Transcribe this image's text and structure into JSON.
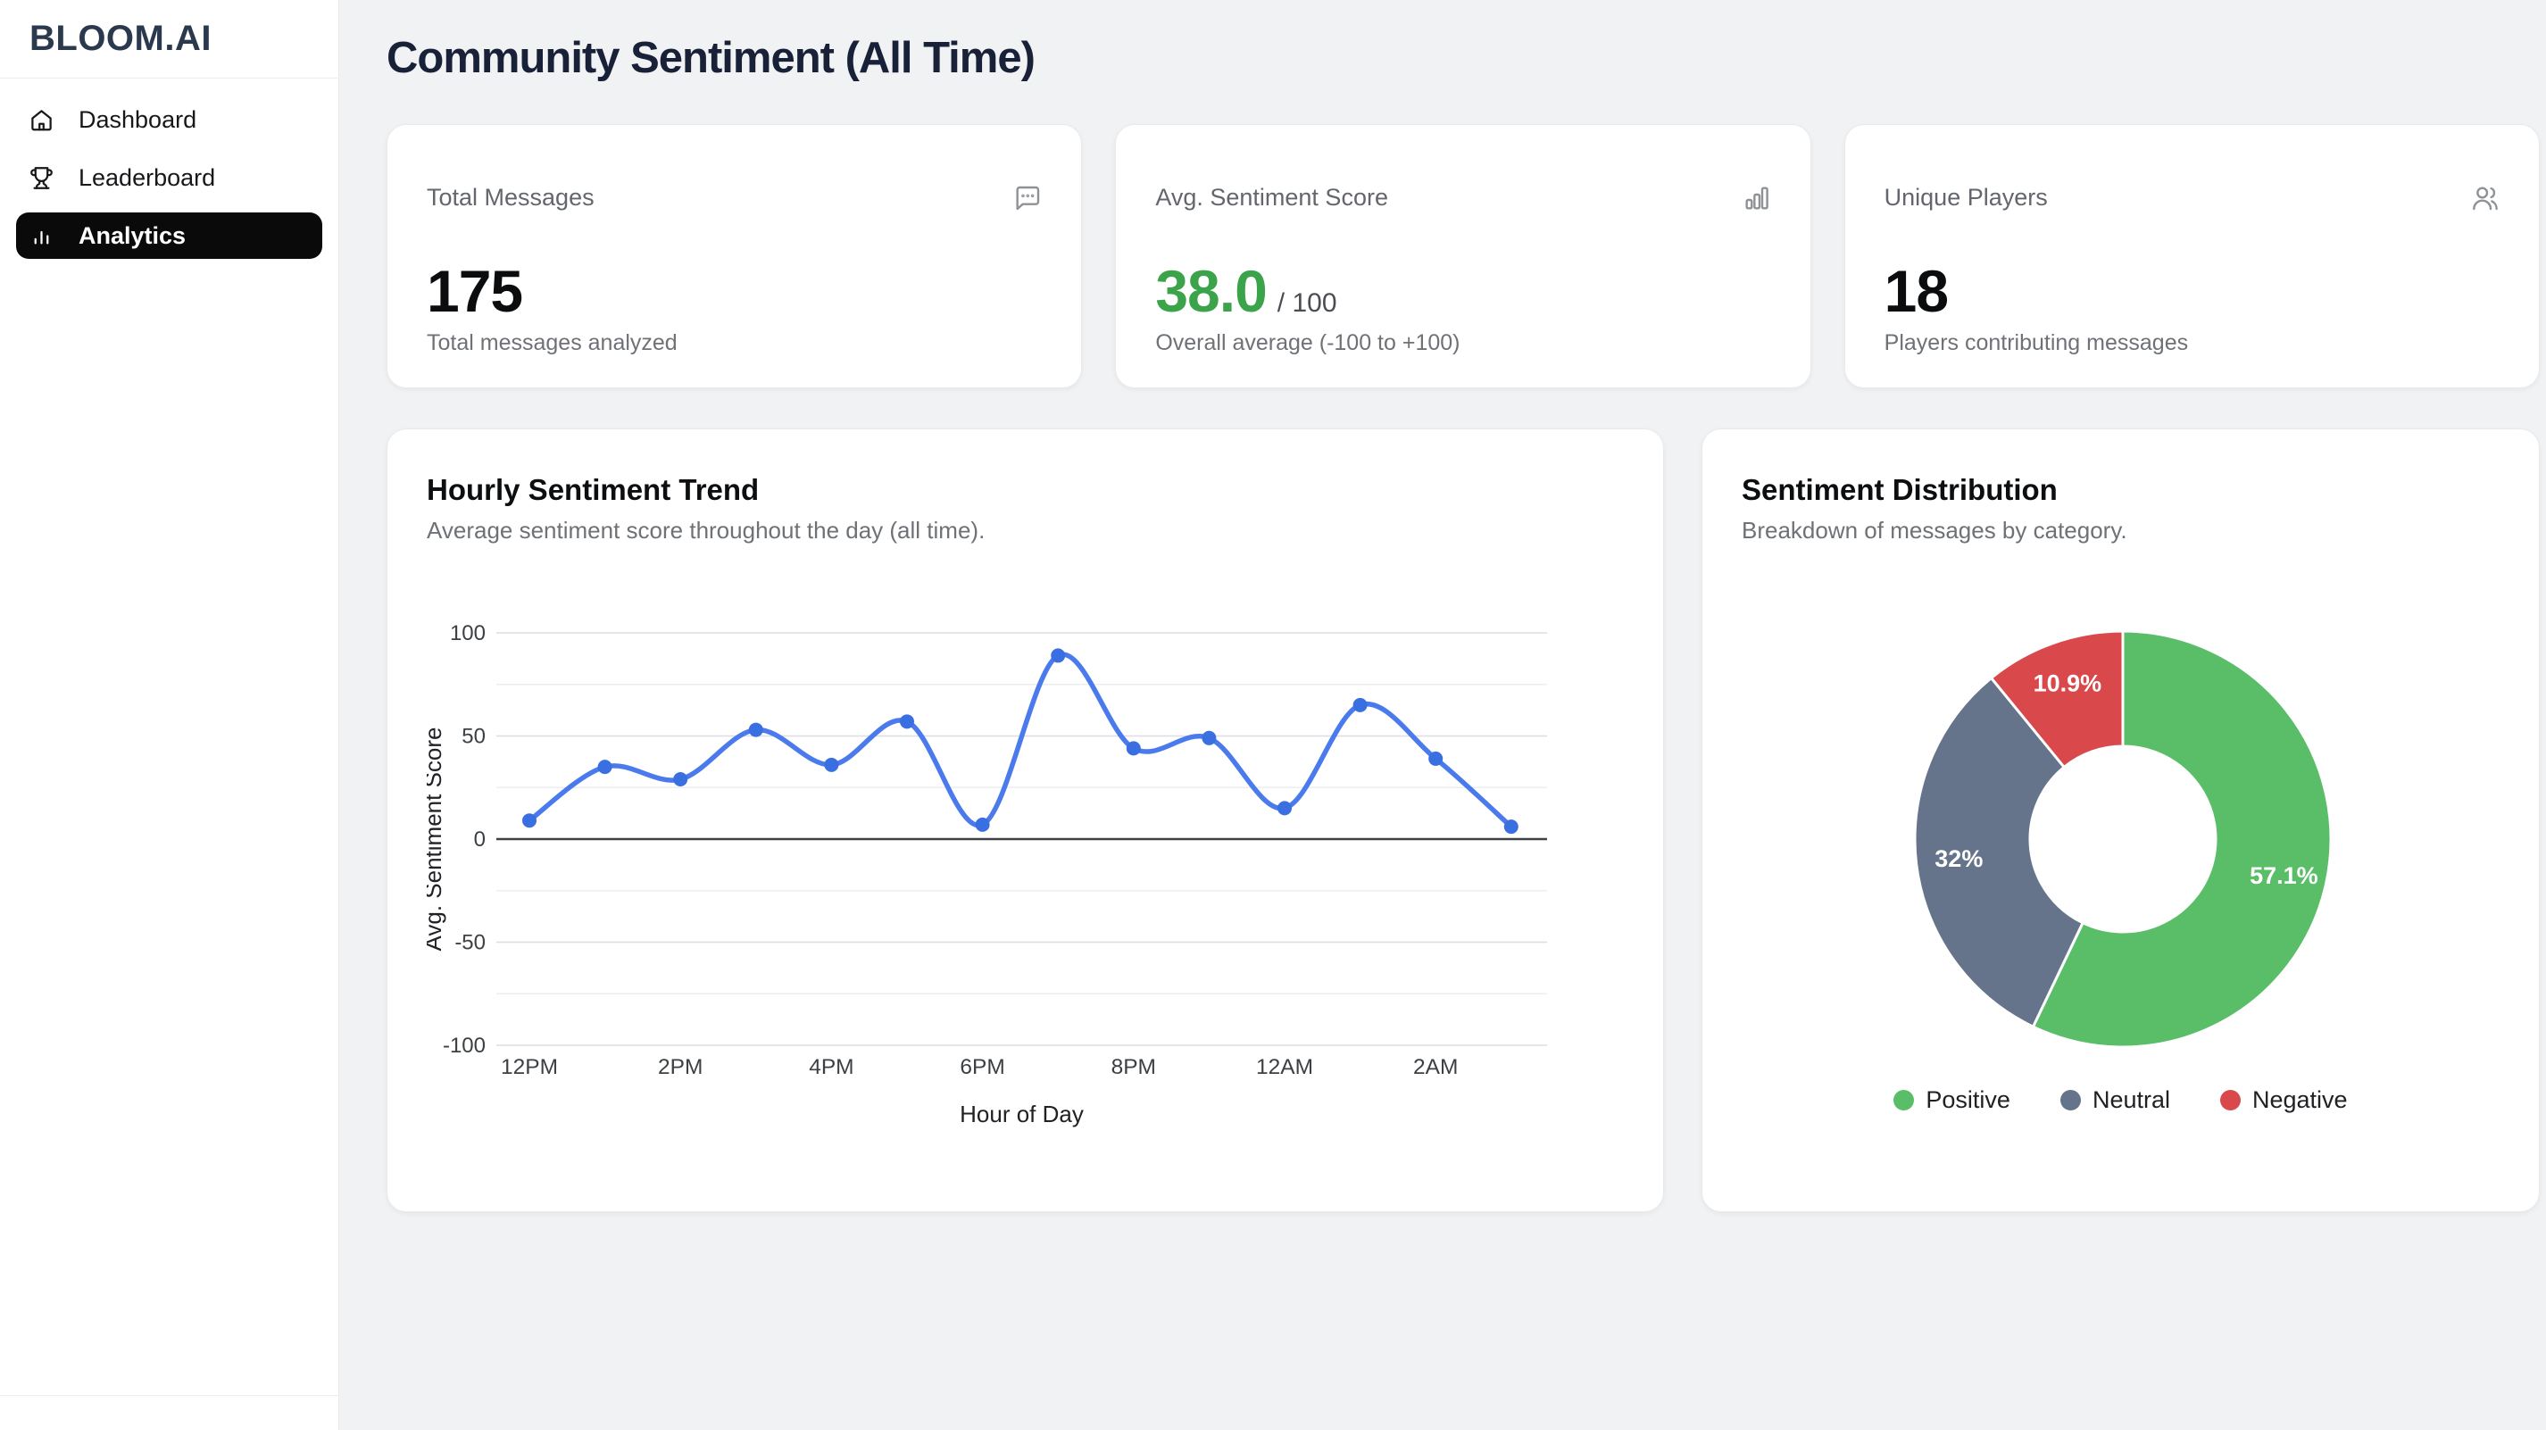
{
  "sidebar": {
    "logo": "BLOOM.AI",
    "items": [
      {
        "label": "Dashboard",
        "active": false
      },
      {
        "label": "Leaderboard",
        "active": false
      },
      {
        "label": "Analytics",
        "active": true
      }
    ]
  },
  "header": {
    "title": "Community Sentiment (All Time)"
  },
  "stats": [
    {
      "label": "Total Messages",
      "value": "175",
      "suffix": "",
      "description": "Total messages analyzed"
    },
    {
      "label": "Avg. Sentiment Score",
      "value": "38.0",
      "suffix": "/ 100",
      "description": "Overall average (-100 to +100)",
      "value_color": "#3BA349"
    },
    {
      "label": "Unique Players",
      "value": "18",
      "suffix": "",
      "description": "Players contributing messages"
    }
  ],
  "trend_card": {
    "title": "Hourly Sentiment Trend",
    "subtitle": "Average sentiment score throughout the day (all time)."
  },
  "distribution_card": {
    "title": "Sentiment Distribution",
    "subtitle": "Breakdown of messages by category."
  },
  "chart_data": [
    {
      "type": "line",
      "title": "Hourly Sentiment Trend",
      "x": [
        "12PM",
        "1PM",
        "2PM",
        "3PM",
        "4PM",
        "5PM",
        "6PM",
        "7PM",
        "8PM",
        "9PM",
        "12AM",
        "1AM",
        "2AM",
        "3AM"
      ],
      "values": [
        9,
        35,
        29,
        53,
        36,
        57,
        7,
        89,
        44,
        49,
        15,
        65,
        39,
        6
      ],
      "x_ticks_shown": [
        "12PM",
        "2PM",
        "4PM",
        "6PM",
        "8PM",
        "12AM",
        "2AM"
      ],
      "xlabel": "Hour of Day",
      "ylabel": "Avg. Sentiment Score",
      "ylim": [
        -100,
        100
      ],
      "yticks": [
        100,
        50,
        0,
        -50,
        -100
      ],
      "minor_grid_step": 25,
      "grid": true,
      "smooth": true,
      "line_color": "#4A7AEC",
      "point_color": "#3A6FE2"
    },
    {
      "type": "pie",
      "title": "Sentiment Distribution",
      "donut": true,
      "categories": [
        "Positive",
        "Neutral",
        "Negative"
      ],
      "values": [
        57.1,
        32,
        10.9
      ],
      "display_labels": [
        "57.1%",
        "32%",
        "10.9%"
      ],
      "colors": [
        "#59BE67",
        "#65748B",
        "#D9494C"
      ],
      "legend_position": "bottom",
      "start_angle_deg": 0,
      "direction": "clockwise"
    }
  ]
}
